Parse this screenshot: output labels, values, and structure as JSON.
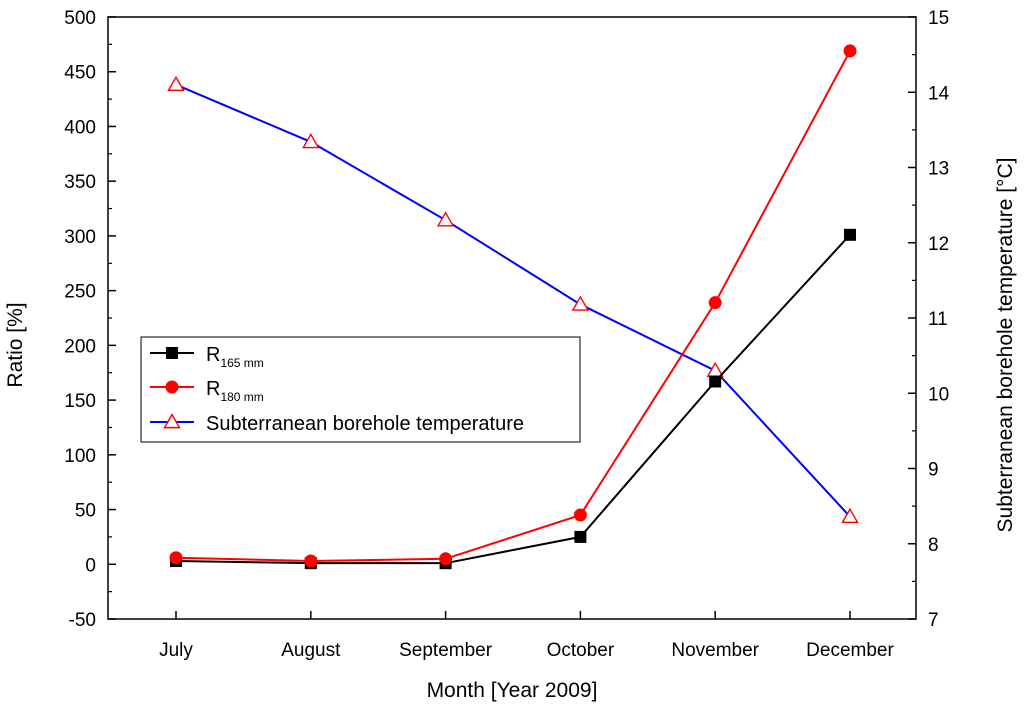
{
  "chart_data": {
    "type": "line",
    "title": "",
    "xlabel": "Month [Year 2009]",
    "ylabel": "Ratio [%]",
    "y2label": "Subterranean borehole temperature [°C]",
    "categories": [
      "July",
      "August",
      "September",
      "October",
      "November",
      "December"
    ],
    "ylim": [
      -50,
      500
    ],
    "yticks": [
      -50,
      0,
      50,
      100,
      150,
      200,
      250,
      300,
      350,
      400,
      450,
      500
    ],
    "y2lim": [
      7,
      15
    ],
    "y2ticks": [
      7,
      8,
      9,
      10,
      11,
      12,
      13,
      14,
      15
    ],
    "legend_position": "center-left",
    "series": [
      {
        "name": "R165 mm",
        "label_main": "R",
        "label_sub": "165 mm",
        "axis": "left",
        "color": "#000000",
        "marker": "square",
        "values": [
          3,
          1,
          1,
          25,
          167,
          301
        ]
      },
      {
        "name": "R180 mm",
        "label_main": "R",
        "label_sub": "180 mm",
        "axis": "left",
        "color": "#ff0000",
        "marker": "circle",
        "values": [
          6,
          3,
          5,
          45,
          239,
          469
        ]
      },
      {
        "name": "Subterranean borehole temperature",
        "label_main": "Subterranean borehole temperature",
        "label_sub": "",
        "axis": "right",
        "color": "#0000ff",
        "marker": "triangle-open",
        "marker_color": "#ff0000",
        "values": [
          14.1,
          13.34,
          12.3,
          11.18,
          10.3,
          8.36
        ]
      }
    ]
  }
}
